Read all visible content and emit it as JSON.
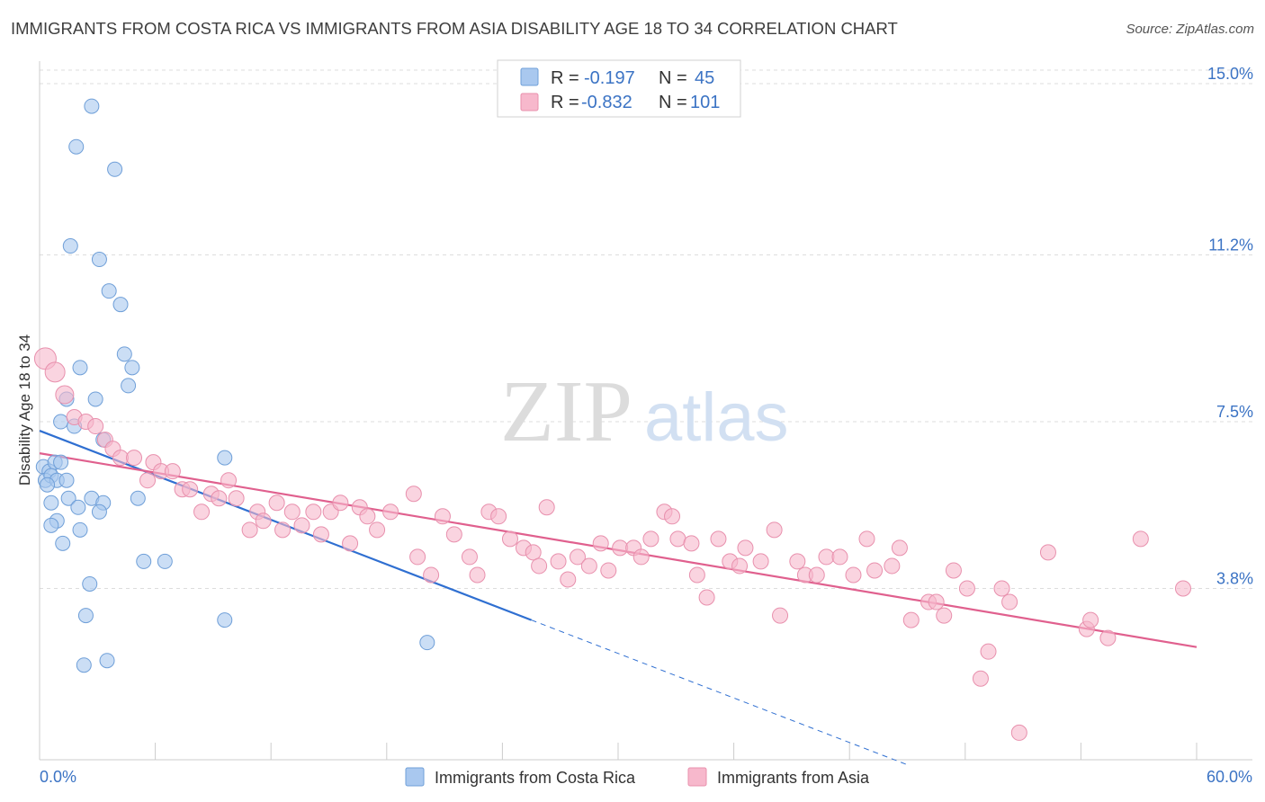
{
  "title": "IMMIGRANTS FROM COSTA RICA VS IMMIGRANTS FROM ASIA DISABILITY AGE 18 TO 34 CORRELATION CHART",
  "source": "Source: ZipAtlas.com",
  "watermark": {
    "part1": "ZIP",
    "part2": "atlas"
  },
  "legend_top": [
    {
      "r_label": "R = ",
      "r_value": "-0.197",
      "n_label": "N = ",
      "n_value": "45",
      "color": "#a9c8ef"
    },
    {
      "r_label": "R = ",
      "r_value": "-0.832",
      "n_label": "N = ",
      "n_value": "101",
      "color": "#f7b8cc"
    }
  ],
  "chart_data": {
    "type": "scatter",
    "title": "IMMIGRANTS FROM COSTA RICA VS IMMIGRANTS FROM ASIA DISABILITY AGE 18 TO 34 CORRELATION CHART",
    "xlabel": "",
    "ylabel": "Disability Age 18 to 34",
    "xlim": [
      0,
      60
    ],
    "ylim": [
      0,
      15.3
    ],
    "x_tick_labels": [
      "0.0%",
      "60.0%"
    ],
    "y_ticks": [
      3.8,
      7.5,
      11.2,
      15.0
    ],
    "y_tick_labels": [
      "3.8%",
      "7.5%",
      "11.2%",
      "15.0%"
    ],
    "grid": true,
    "legend_position": "bottom",
    "series": [
      {
        "name": "Immigrants from Costa Rica",
        "color": "#a9c8ef",
        "stroke": "#6f9fd8",
        "r": -0.197,
        "n": 45,
        "trend": {
          "x": [
            0,
            25.5
          ],
          "y": [
            7.3,
            3.1
          ],
          "extend_to_x": 45,
          "color": "#2f6fd1"
        },
        "points": [
          {
            "x": 2.7,
            "y": 14.5
          },
          {
            "x": 1.9,
            "y": 13.6
          },
          {
            "x": 3.9,
            "y": 13.1
          },
          {
            "x": 1.6,
            "y": 11.4
          },
          {
            "x": 3.1,
            "y": 11.1
          },
          {
            "x": 3.6,
            "y": 10.4
          },
          {
            "x": 4.2,
            "y": 10.1
          },
          {
            "x": 4.4,
            "y": 9.0
          },
          {
            "x": 2.1,
            "y": 8.7
          },
          {
            "x": 4.8,
            "y": 8.7
          },
          {
            "x": 4.6,
            "y": 8.3
          },
          {
            "x": 1.4,
            "y": 8.0
          },
          {
            "x": 2.9,
            "y": 8.0
          },
          {
            "x": 1.1,
            "y": 7.5
          },
          {
            "x": 1.8,
            "y": 7.4
          },
          {
            "x": 0.2,
            "y": 6.5
          },
          {
            "x": 0.5,
            "y": 6.4
          },
          {
            "x": 0.8,
            "y": 6.6
          },
          {
            "x": 1.1,
            "y": 6.6
          },
          {
            "x": 0.3,
            "y": 6.2
          },
          {
            "x": 0.6,
            "y": 6.3
          },
          {
            "x": 0.9,
            "y": 6.2
          },
          {
            "x": 1.4,
            "y": 6.2
          },
          {
            "x": 9.6,
            "y": 6.7
          },
          {
            "x": 0.6,
            "y": 5.7
          },
          {
            "x": 1.5,
            "y": 5.8
          },
          {
            "x": 2.0,
            "y": 5.6
          },
          {
            "x": 2.7,
            "y": 5.8
          },
          {
            "x": 3.3,
            "y": 5.7
          },
          {
            "x": 5.1,
            "y": 5.8
          },
          {
            "x": 3.1,
            "y": 5.5
          },
          {
            "x": 0.9,
            "y": 5.3
          },
          {
            "x": 0.6,
            "y": 5.2
          },
          {
            "x": 2.1,
            "y": 5.1
          },
          {
            "x": 1.2,
            "y": 4.8
          },
          {
            "x": 5.4,
            "y": 4.4
          },
          {
            "x": 6.5,
            "y": 4.4
          },
          {
            "x": 2.6,
            "y": 3.9
          },
          {
            "x": 2.4,
            "y": 3.2
          },
          {
            "x": 9.6,
            "y": 3.1
          },
          {
            "x": 20.1,
            "y": 2.6
          },
          {
            "x": 2.3,
            "y": 2.1
          },
          {
            "x": 3.5,
            "y": 2.2
          },
          {
            "x": 3.3,
            "y": 7.1
          },
          {
            "x": 0.4,
            "y": 6.1
          }
        ]
      },
      {
        "name": "Immigrants from Asia",
        "color": "#f7b8cc",
        "stroke": "#e890ad",
        "r": -0.832,
        "n": 101,
        "trend": {
          "x": [
            0,
            60
          ],
          "y": [
            6.8,
            2.5
          ],
          "color": "#e0608e"
        },
        "points": [
          {
            "x": 0.3,
            "y": 8.9
          },
          {
            "x": 0.8,
            "y": 8.6
          },
          {
            "x": 1.3,
            "y": 8.1
          },
          {
            "x": 1.8,
            "y": 7.6
          },
          {
            "x": 2.4,
            "y": 7.5
          },
          {
            "x": 2.9,
            "y": 7.4
          },
          {
            "x": 3.4,
            "y": 7.1
          },
          {
            "x": 3.8,
            "y": 6.9
          },
          {
            "x": 4.2,
            "y": 6.7
          },
          {
            "x": 4.9,
            "y": 6.7
          },
          {
            "x": 5.6,
            "y": 6.2
          },
          {
            "x": 5.9,
            "y": 6.6
          },
          {
            "x": 6.3,
            "y": 6.4
          },
          {
            "x": 6.9,
            "y": 6.4
          },
          {
            "x": 7.4,
            "y": 6.0
          },
          {
            "x": 7.8,
            "y": 6.0
          },
          {
            "x": 8.4,
            "y": 5.5
          },
          {
            "x": 8.9,
            "y": 5.9
          },
          {
            "x": 9.3,
            "y": 5.8
          },
          {
            "x": 9.8,
            "y": 6.2
          },
          {
            "x": 10.2,
            "y": 5.8
          },
          {
            "x": 10.9,
            "y": 5.1
          },
          {
            "x": 11.3,
            "y": 5.5
          },
          {
            "x": 11.6,
            "y": 5.3
          },
          {
            "x": 12.3,
            "y": 5.7
          },
          {
            "x": 12.6,
            "y": 5.1
          },
          {
            "x": 13.1,
            "y": 5.5
          },
          {
            "x": 13.6,
            "y": 5.2
          },
          {
            "x": 14.2,
            "y": 5.5
          },
          {
            "x": 14.6,
            "y": 5.0
          },
          {
            "x": 15.1,
            "y": 5.5
          },
          {
            "x": 15.6,
            "y": 5.7
          },
          {
            "x": 16.1,
            "y": 4.8
          },
          {
            "x": 16.6,
            "y": 5.6
          },
          {
            "x": 17.0,
            "y": 5.4
          },
          {
            "x": 17.5,
            "y": 5.1
          },
          {
            "x": 18.2,
            "y": 5.5
          },
          {
            "x": 19.4,
            "y": 5.9
          },
          {
            "x": 19.6,
            "y": 4.5
          },
          {
            "x": 20.3,
            "y": 4.1
          },
          {
            "x": 20.9,
            "y": 5.4
          },
          {
            "x": 21.5,
            "y": 5.0
          },
          {
            "x": 22.3,
            "y": 4.5
          },
          {
            "x": 22.7,
            "y": 4.1
          },
          {
            "x": 23.3,
            "y": 5.5
          },
          {
            "x": 23.8,
            "y": 5.4
          },
          {
            "x": 24.4,
            "y": 4.9
          },
          {
            "x": 25.1,
            "y": 4.7
          },
          {
            "x": 25.6,
            "y": 4.6
          },
          {
            "x": 25.9,
            "y": 4.3
          },
          {
            "x": 26.3,
            "y": 5.6
          },
          {
            "x": 26.9,
            "y": 4.4
          },
          {
            "x": 27.4,
            "y": 4.0
          },
          {
            "x": 27.9,
            "y": 4.5
          },
          {
            "x": 28.5,
            "y": 4.3
          },
          {
            "x": 29.1,
            "y": 4.8
          },
          {
            "x": 29.5,
            "y": 4.2
          },
          {
            "x": 30.1,
            "y": 4.7
          },
          {
            "x": 30.8,
            "y": 4.7
          },
          {
            "x": 31.2,
            "y": 4.5
          },
          {
            "x": 31.7,
            "y": 4.9
          },
          {
            "x": 32.4,
            "y": 5.5
          },
          {
            "x": 32.8,
            "y": 5.4
          },
          {
            "x": 33.1,
            "y": 4.9
          },
          {
            "x": 33.8,
            "y": 4.8
          },
          {
            "x": 34.1,
            "y": 4.1
          },
          {
            "x": 34.6,
            "y": 3.6
          },
          {
            "x": 35.2,
            "y": 4.9
          },
          {
            "x": 35.8,
            "y": 4.4
          },
          {
            "x": 36.3,
            "y": 4.3
          },
          {
            "x": 36.6,
            "y": 4.7
          },
          {
            "x": 37.4,
            "y": 4.4
          },
          {
            "x": 38.1,
            "y": 5.1
          },
          {
            "x": 38.4,
            "y": 3.2
          },
          {
            "x": 39.3,
            "y": 4.4
          },
          {
            "x": 39.7,
            "y": 4.1
          },
          {
            "x": 40.3,
            "y": 4.1
          },
          {
            "x": 40.8,
            "y": 4.5
          },
          {
            "x": 41.5,
            "y": 4.5
          },
          {
            "x": 42.2,
            "y": 4.1
          },
          {
            "x": 42.9,
            "y": 4.9
          },
          {
            "x": 43.3,
            "y": 4.2
          },
          {
            "x": 44.2,
            "y": 4.3
          },
          {
            "x": 44.6,
            "y": 4.7
          },
          {
            "x": 45.2,
            "y": 3.1
          },
          {
            "x": 46.1,
            "y": 3.5
          },
          {
            "x": 46.5,
            "y": 3.5
          },
          {
            "x": 46.9,
            "y": 3.2
          },
          {
            "x": 47.4,
            "y": 4.2
          },
          {
            "x": 48.1,
            "y": 3.8
          },
          {
            "x": 49.2,
            "y": 2.4
          },
          {
            "x": 48.8,
            "y": 1.8
          },
          {
            "x": 49.9,
            "y": 3.8
          },
          {
            "x": 50.3,
            "y": 3.5
          },
          {
            "x": 50.8,
            "y": 0.6
          },
          {
            "x": 52.3,
            "y": 4.6
          },
          {
            "x": 54.3,
            "y": 2.9
          },
          {
            "x": 54.5,
            "y": 3.1
          },
          {
            "x": 55.4,
            "y": 2.7
          },
          {
            "x": 57.1,
            "y": 4.9
          },
          {
            "x": 59.3,
            "y": 3.8
          }
        ]
      }
    ]
  }
}
